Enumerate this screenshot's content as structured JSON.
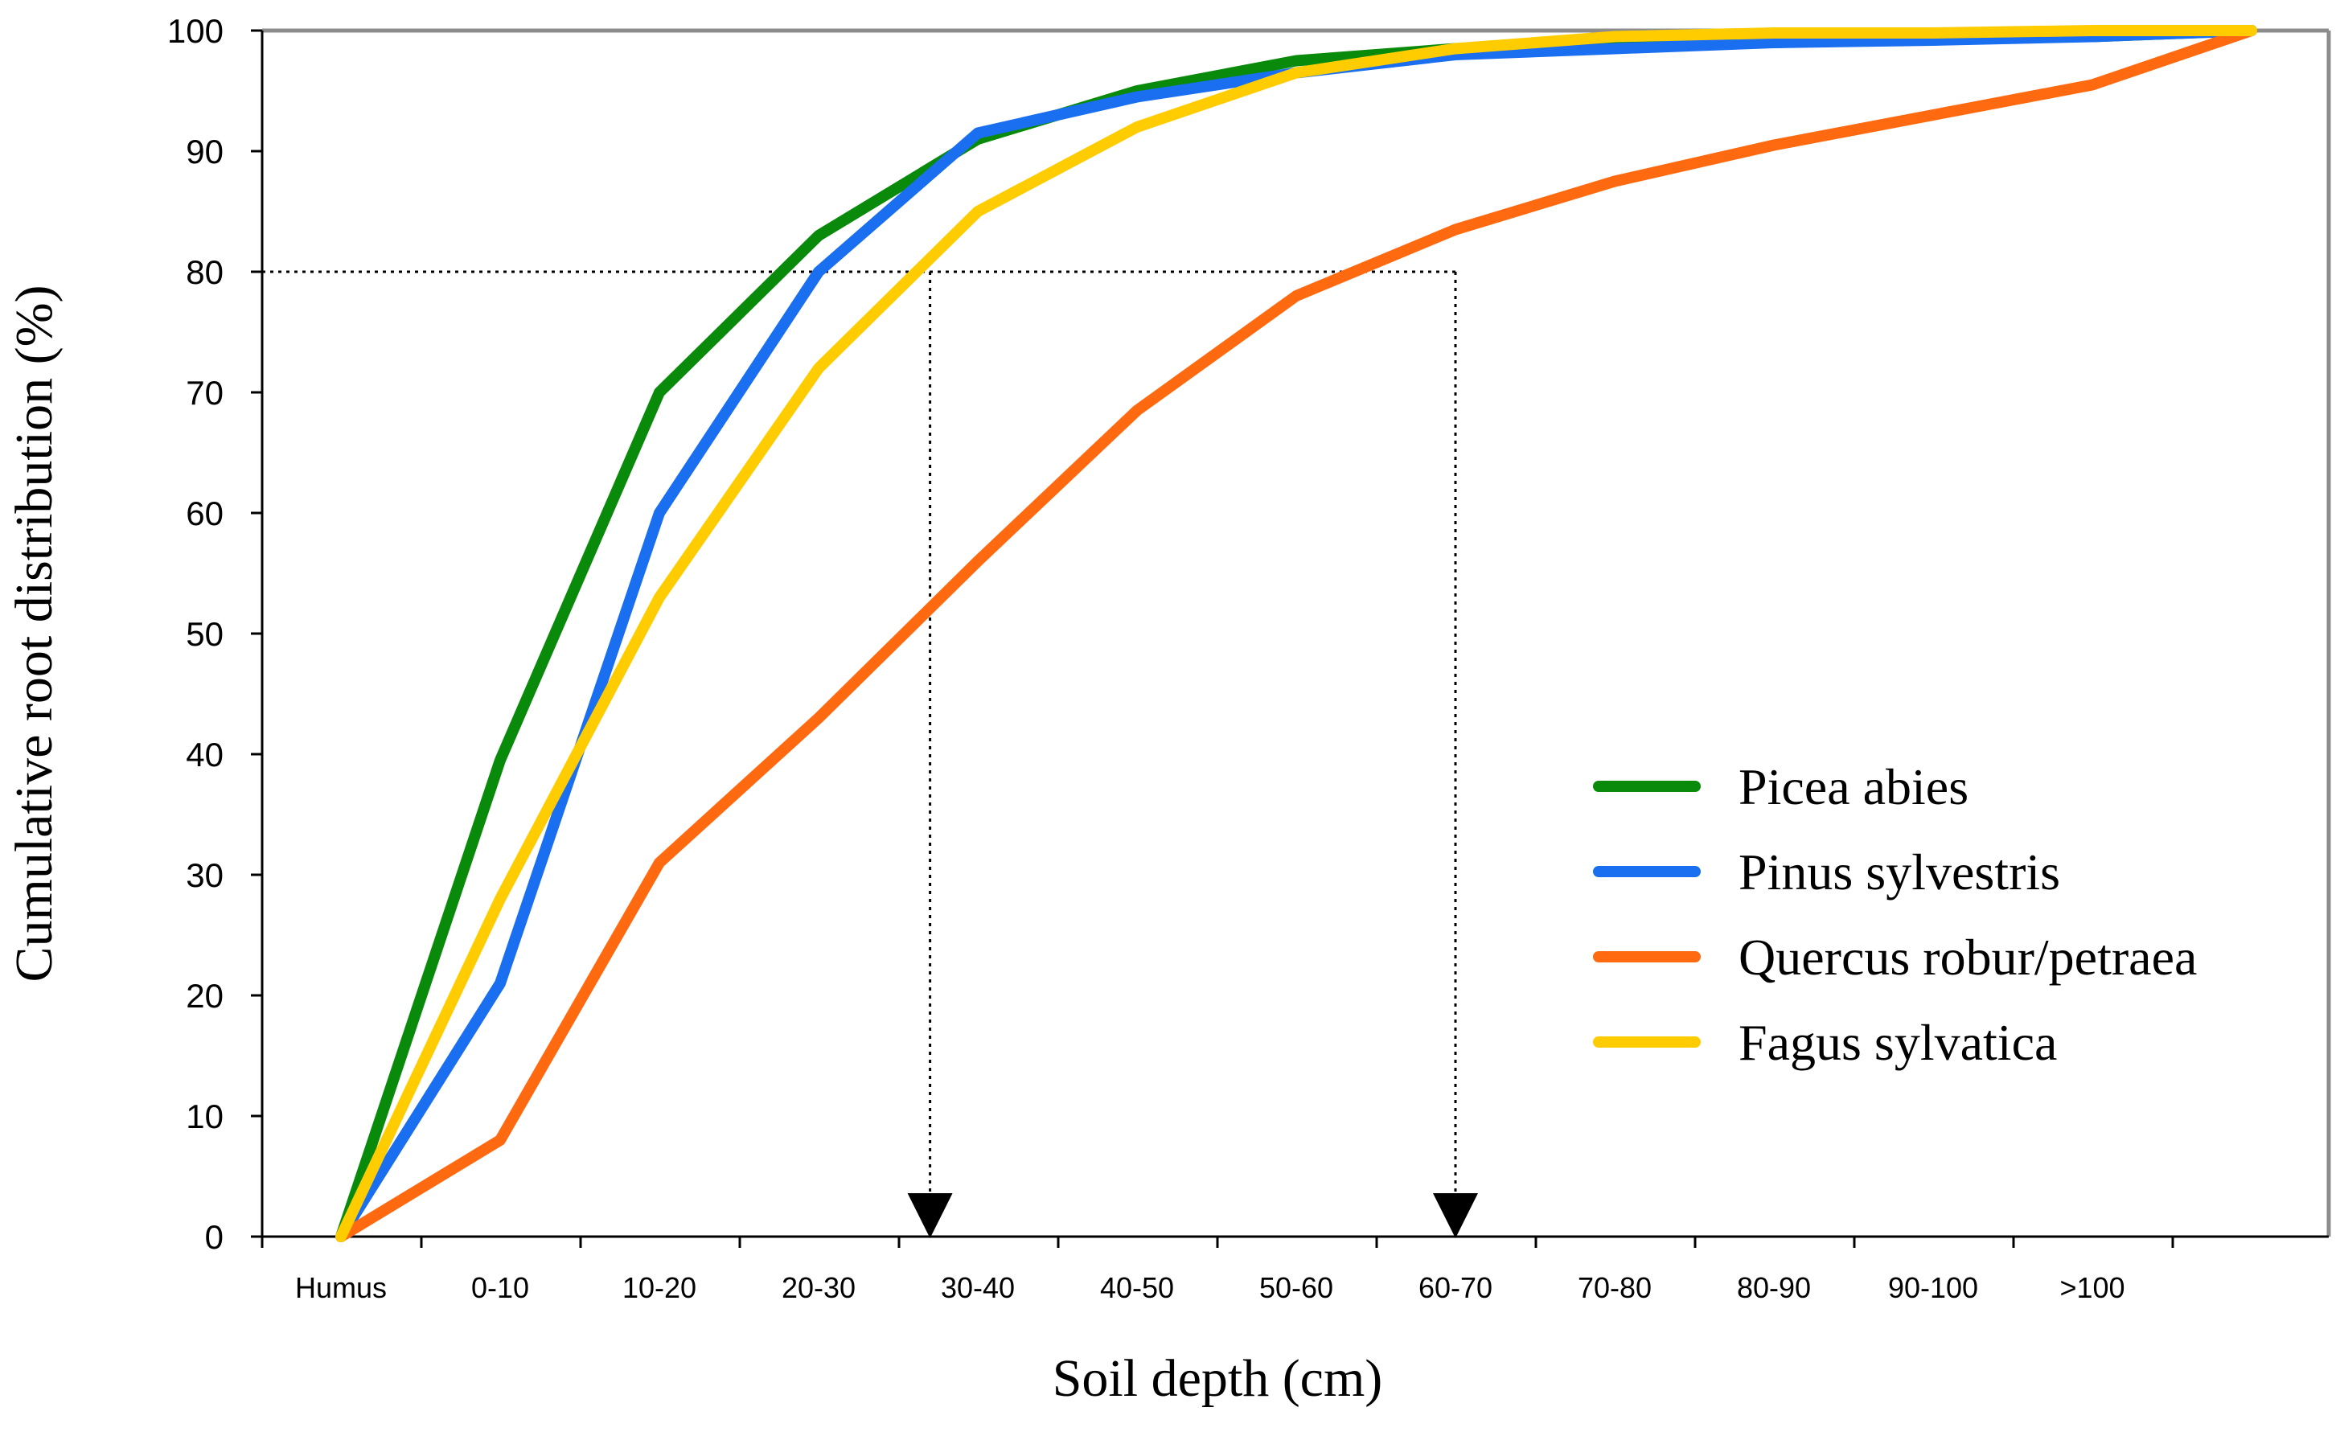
{
  "chart_data": {
    "type": "line",
    "title": "",
    "xlabel": "Soil depth (cm)",
    "ylabel": "Cumulative root distribution (%)",
    "ylim": [
      0,
      100
    ],
    "yticks": [
      "0",
      "10",
      "20",
      "30",
      "40",
      "50",
      "60",
      "70",
      "80",
      "90",
      "100"
    ],
    "categories": [
      "Humus",
      "0-10",
      "10-20",
      "20-30",
      "30-40",
      "40-50",
      "50-60",
      "60-70",
      "70-80",
      "80-90",
      "90-100",
      ">100"
    ],
    "x": [
      0,
      1,
      2,
      3,
      4,
      5,
      6,
      7,
      8,
      9,
      10,
      11,
      12
    ],
    "series": [
      {
        "name": "Picea abies",
        "color": "#0a8a0a",
        "values": [
          0,
          39.5,
          70,
          83,
          91,
          95,
          97.5,
          98.5,
          99,
          99,
          99.5,
          99.5,
          100
        ]
      },
      {
        "name": "Pinus sylvestris",
        "color": "#1a6ef0",
        "values": [
          0,
          21,
          60,
          80,
          91.5,
          94.5,
          96.5,
          98,
          98.5,
          99,
          99.2,
          99.5,
          100
        ]
      },
      {
        "name": "Quercus robur/petraea",
        "color": "#ff6a10",
        "values": [
          0,
          8,
          31,
          43,
          56,
          68.5,
          78,
          83.5,
          87.5,
          90.5,
          93,
          95.5,
          100
        ]
      },
      {
        "name": "Fagus sylvatica",
        "color": "#ffcc00",
        "values": [
          0,
          28,
          53,
          72,
          85,
          92,
          96.5,
          98.5,
          99.5,
          99.8,
          99.8,
          100,
          100
        ]
      }
    ],
    "annotations": [
      {
        "description": "80% reference line dropping to x-axis",
        "y": 80,
        "x_end": 3.7
      },
      {
        "description": "80% reference line dropping to x-axis",
        "y": 80,
        "x_end": 7.0
      }
    ],
    "legend": "bottom-right",
    "grid": false
  }
}
